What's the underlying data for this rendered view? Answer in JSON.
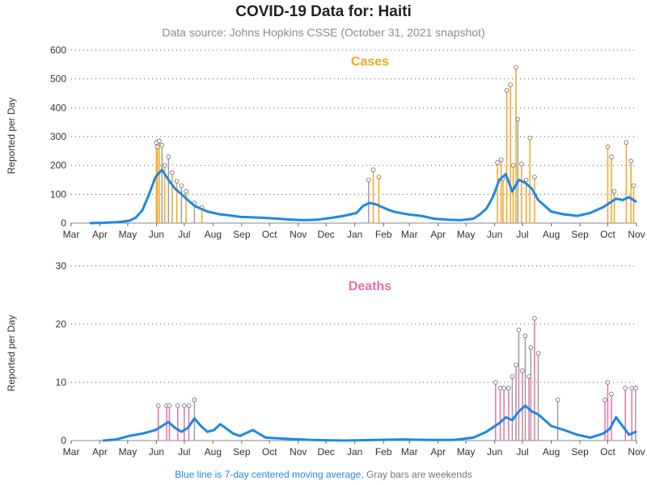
{
  "title": "COVID-19 Data for: Haiti",
  "subtitle": "Data source: Johns Hopkins CSSE (October 31, 2021 snapshot)",
  "footer": {
    "blue_text": "Blue line is 7-day centered moving average,",
    "gray_text": "Gray bars are weekends"
  },
  "colors": {
    "cases": "#f5a623",
    "deaths": "#e96fa8",
    "average_line": "#1e88e5",
    "weekend": "#9e9e9e",
    "grid": "#555555"
  },
  "chart_data": [
    {
      "type": "bar",
      "panel_title": "Cases",
      "ylabel": "Reported per Day",
      "ylim": [
        0,
        600
      ],
      "y_ticks": [
        0,
        100,
        200,
        300,
        400,
        500,
        600
      ],
      "x_tick_labels": [
        "Mar",
        "Apr",
        "May",
        "Jun",
        "Jul",
        "Aug",
        "Sep",
        "Oct",
        "Nov",
        "Dec",
        "Jan",
        "Feb",
        "Mar",
        "Apr",
        "May",
        "Jun",
        "Jul",
        "Aug",
        "Sep",
        "Oct",
        "Nov"
      ],
      "x_range": [
        "2020-03-01",
        "2021-11-01"
      ],
      "grid": "horizontal dotted",
      "series": [
        {
          "name": "Blue line is 7-day centered moving average,",
          "weekly_x": [
            "2020-03-22",
            "2020-04-05",
            "2020-04-19",
            "2020-05-03",
            "2020-05-10",
            "2020-05-17",
            "2020-05-24",
            "2020-05-31",
            "2020-06-07",
            "2020-06-14",
            "2020-06-21",
            "2020-06-28",
            "2020-07-05",
            "2020-07-12",
            "2020-07-19",
            "2020-07-26",
            "2020-08-02",
            "2020-08-09",
            "2020-08-16",
            "2020-08-23",
            "2020-08-30",
            "2020-09-13",
            "2020-09-27",
            "2020-10-11",
            "2020-10-25",
            "2020-11-08",
            "2020-11-22",
            "2020-12-06",
            "2020-12-20",
            "2021-01-03",
            "2021-01-10",
            "2021-01-17",
            "2021-01-24",
            "2021-01-31",
            "2021-02-07",
            "2021-02-14",
            "2021-02-28",
            "2021-03-14",
            "2021-03-28",
            "2021-04-11",
            "2021-04-25",
            "2021-05-09",
            "2021-05-16",
            "2021-05-23",
            "2021-05-30",
            "2021-06-06",
            "2021-06-13",
            "2021-06-20",
            "2021-06-27",
            "2021-07-04",
            "2021-07-11",
            "2021-07-18",
            "2021-07-25",
            "2021-08-01",
            "2021-08-08",
            "2021-08-15",
            "2021-08-22",
            "2021-08-29",
            "2021-09-05",
            "2021-09-12",
            "2021-09-19",
            "2021-09-26",
            "2021-10-03",
            "2021-10-10",
            "2021-10-17",
            "2021-10-24",
            "2021-10-31"
          ],
          "weekly_y": [
            0,
            1,
            3,
            8,
            20,
            45,
            100,
            160,
            185,
            150,
            120,
            100,
            80,
            60,
            50,
            40,
            35,
            30,
            28,
            25,
            22,
            20,
            18,
            15,
            12,
            10,
            12,
            18,
            25,
            35,
            60,
            70,
            65,
            55,
            45,
            38,
            30,
            25,
            15,
            12,
            10,
            15,
            30,
            50,
            90,
            150,
            170,
            110,
            150,
            140,
            120,
            80,
            60,
            40,
            35,
            30,
            28,
            25,
            30,
            35,
            45,
            55,
            70,
            85,
            80,
            90,
            75
          ]
        }
      ],
      "labeled_daily_peaks": {
        "x": [
          "2020-06-01",
          "2020-06-02",
          "2020-06-04",
          "2020-06-07",
          "2020-06-10",
          "2020-06-14",
          "2020-06-18",
          "2020-06-23",
          "2020-06-28",
          "2020-07-03",
          "2020-07-12",
          "2020-07-20",
          "2021-01-16",
          "2021-01-21",
          "2021-01-27",
          "2021-06-04",
          "2021-06-08",
          "2021-06-10",
          "2021-06-14",
          "2021-06-18",
          "2021-06-21",
          "2021-06-24",
          "2021-06-26",
          "2021-06-30",
          "2021-07-05",
          "2021-07-09",
          "2021-07-14",
          "2021-10-01",
          "2021-10-05",
          "2021-10-08",
          "2021-10-21",
          "2021-10-26",
          "2021-10-29"
        ],
        "y": [
          280,
          265,
          285,
          270,
          200,
          230,
          175,
          145,
          130,
          110,
          70,
          55,
          150,
          185,
          160,
          210,
          220,
          155,
          460,
          480,
          200,
          540,
          360,
          205,
          150,
          295,
          160,
          265,
          230,
          110,
          280,
          215,
          130
        ]
      }
    },
    {
      "type": "bar",
      "panel_title": "Deaths",
      "ylabel": "Reported per Day",
      "ylim": [
        0,
        30
      ],
      "y_ticks": [
        0,
        10,
        20,
        30
      ],
      "x_tick_labels": [
        "Mar",
        "Apr",
        "May",
        "Jun",
        "Jul",
        "Aug",
        "Sep",
        "Oct",
        "Nov",
        "Dec",
        "Jan",
        "Feb",
        "Mar",
        "Apr",
        "May",
        "Jun",
        "Jul",
        "Aug",
        "Sep",
        "Oct",
        "Nov"
      ],
      "x_range": [
        "2020-03-01",
        "2021-11-01"
      ],
      "grid": "horizontal dotted",
      "series": [
        {
          "name": "Blue line is 7-day centered moving average,",
          "weekly_x": [
            "2020-04-05",
            "2020-04-19",
            "2020-05-03",
            "2020-05-17",
            "2020-05-31",
            "2020-06-07",
            "2020-06-14",
            "2020-06-21",
            "2020-06-28",
            "2020-07-05",
            "2020-07-12",
            "2020-07-19",
            "2020-07-26",
            "2020-08-02",
            "2020-08-09",
            "2020-08-16",
            "2020-08-23",
            "2020-08-30",
            "2020-09-13",
            "2020-09-27",
            "2020-10-18",
            "2020-11-15",
            "2020-12-20",
            "2021-01-24",
            "2021-02-21",
            "2021-03-21",
            "2021-04-18",
            "2021-05-09",
            "2021-05-23",
            "2021-06-06",
            "2021-06-13",
            "2021-06-20",
            "2021-06-27",
            "2021-07-04",
            "2021-07-11",
            "2021-07-18",
            "2021-07-25",
            "2021-08-01",
            "2021-08-15",
            "2021-08-29",
            "2021-09-12",
            "2021-09-26",
            "2021-10-03",
            "2021-10-10",
            "2021-10-17",
            "2021-10-24",
            "2021-10-31"
          ],
          "weekly_y": [
            0,
            0.2,
            0.8,
            1.2,
            1.8,
            2.5,
            3.2,
            2.2,
            1.5,
            2.2,
            3.8,
            2.5,
            1.5,
            1.8,
            2.8,
            2,
            1.2,
            0.8,
            1.8,
            0.5,
            0.3,
            0.1,
            0,
            0.1,
            0.2,
            0.1,
            0.1,
            0.5,
            1.5,
            3,
            4,
            3.5,
            5,
            6,
            5,
            4.5,
            3.5,
            2.5,
            1.8,
            1,
            0.5,
            1.2,
            2,
            4,
            2.5,
            1,
            1.5
          ]
        }
      ],
      "labeled_daily_peaks": {
        "x": [
          "2020-06-03",
          "2020-06-12",
          "2020-06-15",
          "2020-06-24",
          "2020-07-01",
          "2020-07-06",
          "2020-07-12",
          "2021-06-02",
          "2021-06-07",
          "2021-06-11",
          "2021-06-16",
          "2021-06-20",
          "2021-06-24",
          "2021-06-27",
          "2021-07-01",
          "2021-07-04",
          "2021-07-08",
          "2021-07-10",
          "2021-07-14",
          "2021-07-18",
          "2021-08-08",
          "2021-09-28",
          "2021-10-01",
          "2021-10-05",
          "2021-10-20",
          "2021-10-27",
          "2021-10-31"
        ],
        "y": [
          6,
          6,
          6,
          6,
          6,
          6,
          7,
          10,
          9,
          9,
          9,
          11,
          13,
          19,
          12,
          18,
          11,
          16,
          21,
          15,
          7,
          7,
          10,
          8,
          9,
          9,
          9
        ]
      }
    }
  ]
}
